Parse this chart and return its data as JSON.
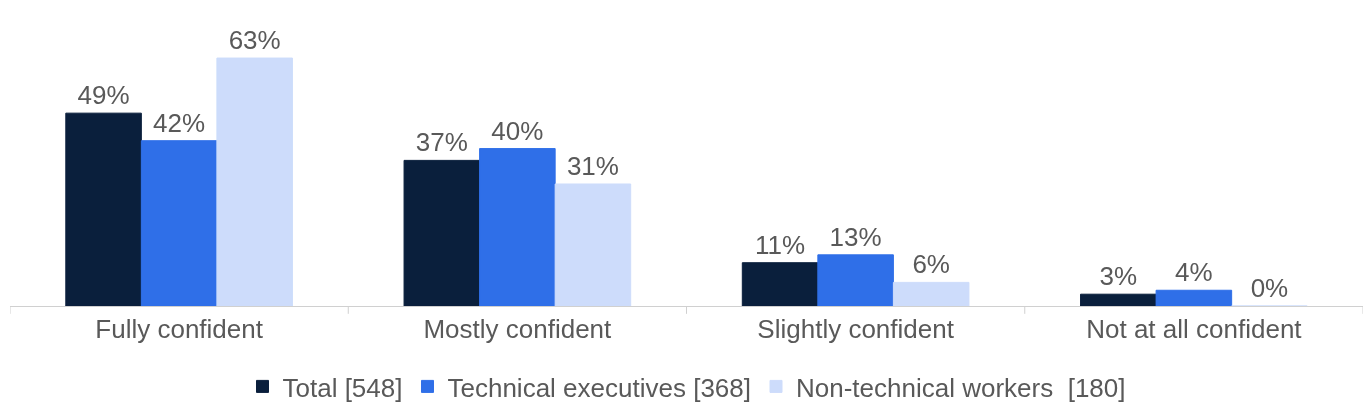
{
  "chart_data": {
    "type": "bar",
    "categories": [
      "Fully confident",
      "Mostly confident",
      "Slightly confident",
      "Not at all confident"
    ],
    "series": [
      {
        "name": "Total [548]",
        "color": "#0a1f3c",
        "values": [
          49,
          37,
          11,
          3
        ],
        "value_labels": [
          "49%",
          "37%",
          "11%",
          "3%"
        ]
      },
      {
        "name": "Technical executives [368]",
        "color": "#2f6fe8",
        "values": [
          42,
          40,
          13,
          4
        ],
        "value_labels": [
          "42%",
          "40%",
          "13%",
          "4%"
        ]
      },
      {
        "name": "Non-technical workers  [180]",
        "color": "#cddcfb",
        "values": [
          63,
          31,
          6,
          0
        ],
        "value_labels": [
          "63%",
          "31%",
          "6%",
          "0%"
        ]
      }
    ],
    "legend": "bottom"
  }
}
